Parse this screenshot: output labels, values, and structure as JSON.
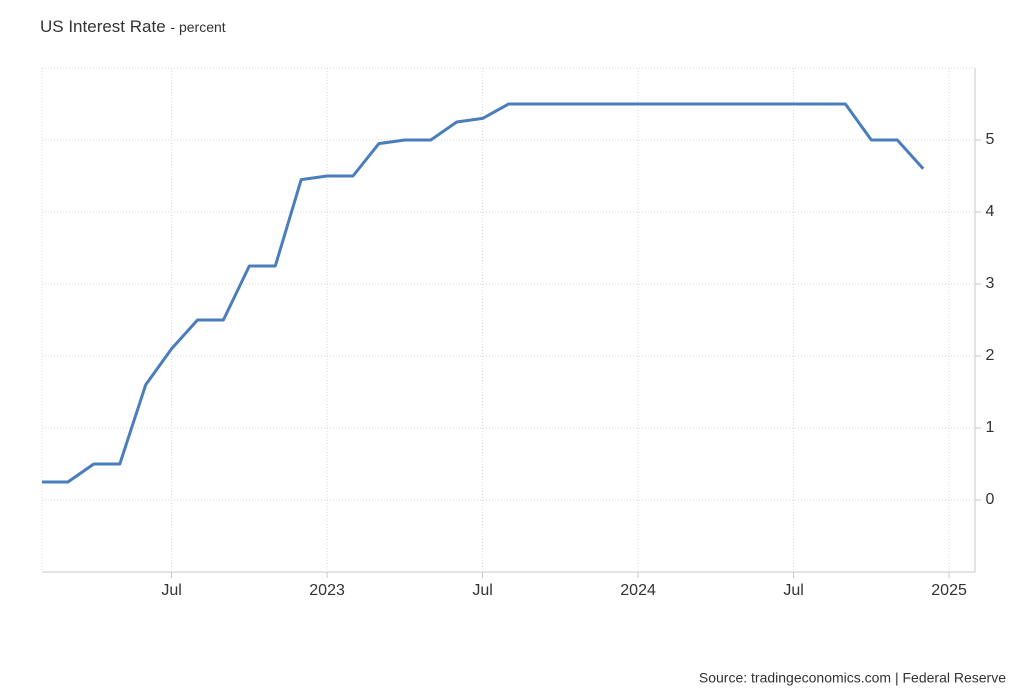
{
  "chart_data": {
    "type": "line",
    "title": "US Interest Rate",
    "subtitle": "- percent",
    "source": "Source: tradingeconomics.com | Federal Reserve",
    "x": [
      "2022-02",
      "2022-03",
      "2022-04",
      "2022-05",
      "2022-06",
      "2022-07",
      "2022-08",
      "2022-09",
      "2022-10",
      "2022-11",
      "2022-12",
      "2023-01",
      "2023-02",
      "2023-03",
      "2023-04",
      "2023-05",
      "2023-06",
      "2023-07",
      "2023-08",
      "2023-09",
      "2023-10",
      "2023-11",
      "2023-12",
      "2024-01",
      "2024-02",
      "2024-03",
      "2024-04",
      "2024-05",
      "2024-06",
      "2024-07",
      "2024-08",
      "2024-09",
      "2024-10",
      "2024-11",
      "2024-12"
    ],
    "series": [
      {
        "name": "US Interest Rate",
        "color": "#4a7ebb",
        "values": [
          0.25,
          0.25,
          0.5,
          0.5,
          1.6,
          2.1,
          2.5,
          2.5,
          3.25,
          3.25,
          4.45,
          4.5,
          4.5,
          4.95,
          5.0,
          5.0,
          5.25,
          5.3,
          5.5,
          5.5,
          5.5,
          5.5,
          5.5,
          5.5,
          5.5,
          5.5,
          5.5,
          5.5,
          5.5,
          5.5,
          5.5,
          5.5,
          5.0,
          5.0,
          4.6
        ]
      }
    ],
    "xlim": [
      "2022-02",
      "2025-02"
    ],
    "xticks": [
      {
        "value": "2022-07",
        "label": "Jul"
      },
      {
        "value": "2023-01",
        "label": "2023"
      },
      {
        "value": "2023-07",
        "label": "Jul"
      },
      {
        "value": "2024-01",
        "label": "2024"
      },
      {
        "value": "2024-07",
        "label": "Jul"
      },
      {
        "value": "2025-01",
        "label": "2025"
      }
    ],
    "ylim": [
      -1,
      6
    ],
    "yticks": [
      0,
      1,
      2,
      3,
      4,
      5
    ],
    "grid": true
  }
}
